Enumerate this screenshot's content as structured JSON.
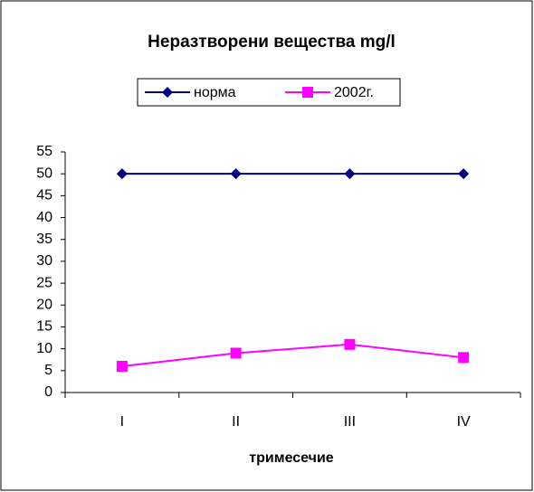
{
  "chart_data": {
    "type": "line",
    "title": "Неразтворени вещества mg/l",
    "xlabel": "тримесечие",
    "categories": [
      "I",
      "II",
      "III",
      "IV"
    ],
    "series": [
      {
        "name": "норма",
        "color": "#000080",
        "marker": "diamond",
        "values": [
          50,
          50,
          50,
          50
        ]
      },
      {
        "name": "2002г.",
        "color": "#ff00ff",
        "marker": "square",
        "values": [
          6,
          9,
          11,
          8
        ]
      }
    ],
    "ylim": [
      0,
      55
    ],
    "yticks": [
      0,
      5,
      10,
      15,
      20,
      25,
      30,
      35,
      40,
      45,
      50,
      55
    ],
    "grid": false,
    "legend": "top"
  }
}
